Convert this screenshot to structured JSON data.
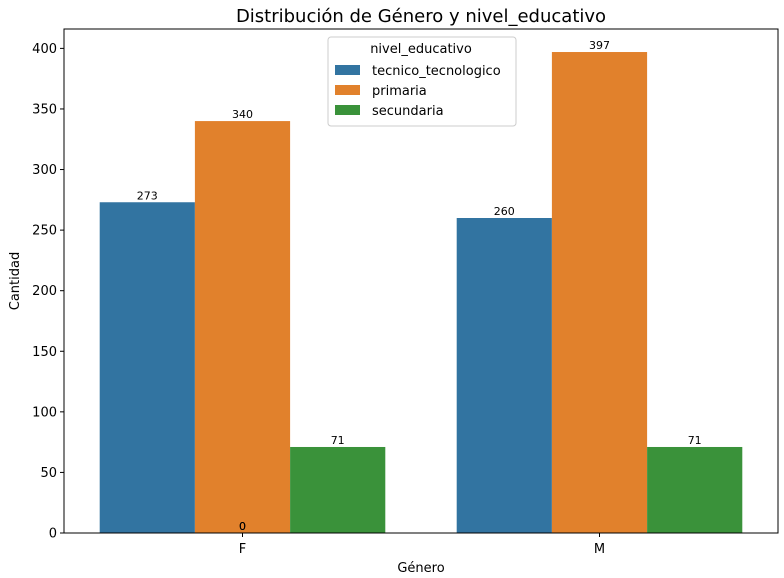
{
  "chart_data": {
    "type": "bar",
    "title": "Distribución de Género y nivel_educativo",
    "xlabel": "Género",
    "ylabel": "Cantidad",
    "categories": [
      "F",
      "M"
    ],
    "series": [
      {
        "name": "tecnico_tecnologico",
        "color": "#3274a1",
        "values": [
          273,
          260
        ]
      },
      {
        "name": "primaria",
        "color": "#e1812c",
        "values": [
          340,
          397
        ]
      },
      {
        "name": "secundaria",
        "color": "#3a923a",
        "values": [
          71,
          71
        ]
      }
    ],
    "ylim": [
      0,
      416
    ],
    "yticks": [
      "0",
      "50",
      "100",
      "150",
      "200",
      "250",
      "300",
      "350",
      "400"
    ],
    "extra_labels": [
      "0",
      "0"
    ],
    "legend": {
      "title": "nivel_educativo",
      "placement": "top-center"
    },
    "grid": false
  }
}
